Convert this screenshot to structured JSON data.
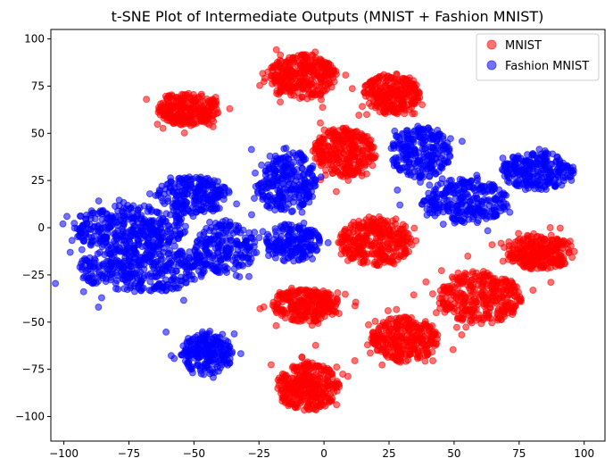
{
  "chart_data": {
    "type": "scatter",
    "title": "t-SNE Plot of Intermediate Outputs (MNIST + Fashion MNIST)",
    "xlabel": "",
    "ylabel": "",
    "xlim": [
      -105,
      108
    ],
    "ylim": [
      -113,
      105
    ],
    "xticks": [
      -100,
      -75,
      -50,
      -25,
      0,
      25,
      50,
      75,
      100
    ],
    "yticks": [
      -100,
      -75,
      -50,
      -25,
      0,
      25,
      50,
      75,
      100
    ],
    "grid": false,
    "legend_position": "top-right",
    "series": [
      {
        "name": "MNIST",
        "color": "#ff0000",
        "alpha": 0.55,
        "clusters": [
          {
            "cx": -52,
            "cy": 63,
            "rx": 12,
            "ry": 9,
            "n": 260
          },
          {
            "cx": -8,
            "cy": 80,
            "rx": 13,
            "ry": 12,
            "n": 320
          },
          {
            "cx": 26,
            "cy": 71,
            "rx": 11,
            "ry": 11,
            "n": 260
          },
          {
            "cx": 8,
            "cy": 40,
            "rx": 12,
            "ry": 13,
            "n": 300
          },
          {
            "cx": 20,
            "cy": -7,
            "rx": 14,
            "ry": 13,
            "n": 320
          },
          {
            "cx": 83,
            "cy": -13,
            "rx": 13,
            "ry": 9,
            "n": 280
          },
          {
            "cx": -7,
            "cy": -41,
            "rx": 13,
            "ry": 9,
            "n": 280
          },
          {
            "cx": 60,
            "cy": -37,
            "rx": 16,
            "ry": 14,
            "n": 340
          },
          {
            "cx": 31,
            "cy": -59,
            "rx": 13,
            "ry": 12,
            "n": 300
          },
          {
            "cx": -6,
            "cy": -84,
            "rx": 12,
            "ry": 13,
            "n": 320
          }
        ]
      },
      {
        "name": "Fashion MNIST",
        "color": "#0000ff",
        "alpha": 0.55,
        "clusters": [
          {
            "cx": -75,
            "cy": 0,
            "rx": 22,
            "ry": 12,
            "n": 360
          },
          {
            "cx": -70,
            "cy": -22,
            "rx": 25,
            "ry": 12,
            "n": 380
          },
          {
            "cx": -50,
            "cy": 17,
            "rx": 14,
            "ry": 10,
            "n": 220
          },
          {
            "cx": -38,
            "cy": -10,
            "rx": 12,
            "ry": 14,
            "n": 220
          },
          {
            "cx": -15,
            "cy": 25,
            "rx": 12,
            "ry": 17,
            "n": 260
          },
          {
            "cx": -12,
            "cy": -8,
            "rx": 11,
            "ry": 10,
            "n": 180
          },
          {
            "cx": -45,
            "cy": -67,
            "rx": 10,
            "ry": 11,
            "n": 220
          },
          {
            "cx": 37,
            "cy": 40,
            "rx": 12,
            "ry": 14,
            "n": 240
          },
          {
            "cx": 54,
            "cy": 14,
            "rx": 17,
            "ry": 12,
            "n": 280
          },
          {
            "cx": 82,
            "cy": 30,
            "rx": 14,
            "ry": 10,
            "n": 240
          }
        ]
      }
    ]
  }
}
